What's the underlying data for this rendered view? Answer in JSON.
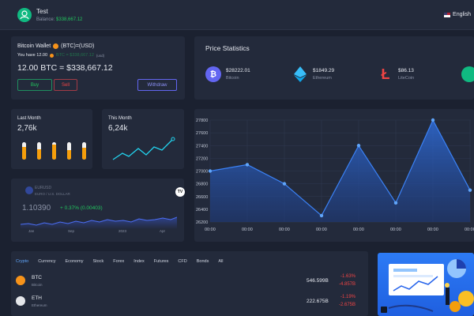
{
  "header": {
    "user_name": "Test",
    "balance_label": "Balance:",
    "balance_value": "$338,667.12",
    "language": "English"
  },
  "wallet": {
    "title": "Bitcoin Wallet",
    "unit": "(BTC)=(USD)",
    "have_label": "You have 12.00",
    "have_faded": "BTC = $338,667.12",
    "have_tiny": "(usd)",
    "amount": "12.00 BTC = $338,667.12",
    "buy_label": "Buy",
    "sell_label": "Sell",
    "withdraw_label": "Withdraw"
  },
  "stats": {
    "title": "Price Statistics",
    "coins": [
      {
        "price": "$28222.01",
        "name": "Bitcoin",
        "color": "#6366f1",
        "icon": "bitcoin-icon"
      },
      {
        "price": "$1849.29",
        "name": "Ethereum",
        "color": "#38bdf8",
        "icon": "ethereum-icon"
      },
      {
        "price": "$86.13",
        "name": "LiteCoin",
        "color": "#ef4444",
        "icon": "litecoin-icon"
      }
    ]
  },
  "last_month": {
    "label": "Last Month",
    "value": "2,76k",
    "levels": [
      0.75,
      0.6,
      0.85,
      0.55,
      0.7
    ]
  },
  "this_month": {
    "label": "This Month",
    "value": "6,24k"
  },
  "ticker": {
    "symbol": "EURUSD",
    "description": "EURO / U.S. DOLLAR",
    "price": "1.10390",
    "change": "+ 0.37% (0.00403)",
    "logo": "TV",
    "months": [
      "Jan",
      "Sep",
      "2023",
      "Apr"
    ]
  },
  "chart_data": {
    "type": "area",
    "x": [
      "00:00",
      "00:00",
      "00:00",
      "00:00",
      "00:00",
      "00:00",
      "00:00",
      "00:00"
    ],
    "y_ticks": [
      27800,
      27600,
      27400,
      27200,
      27000,
      26800,
      26600,
      26400,
      26200
    ],
    "series": [
      {
        "values": [
          27000,
          27100,
          26800,
          26300,
          27400,
          26500,
          27800,
          26700
        ]
      }
    ],
    "ylim": [
      26200,
      27800
    ],
    "grid": true
  },
  "market": {
    "tabs": [
      "Crypto",
      "Currency",
      "Economy",
      "Stock",
      "Forex",
      "Index",
      "Futures",
      "CFD",
      "Bonds",
      "All"
    ],
    "rows": [
      {
        "symbol": "BTC",
        "name": "Bitcoin",
        "volume": "546.599B",
        "change1": "-1.63%",
        "change2": "-4.857B",
        "color": "#f7931a"
      },
      {
        "symbol": "ETH",
        "name": "Ethereum",
        "volume": "222.675B",
        "change1": "-1.19%",
        "change2": "-2.675B",
        "color": "#e5e7eb"
      }
    ]
  }
}
